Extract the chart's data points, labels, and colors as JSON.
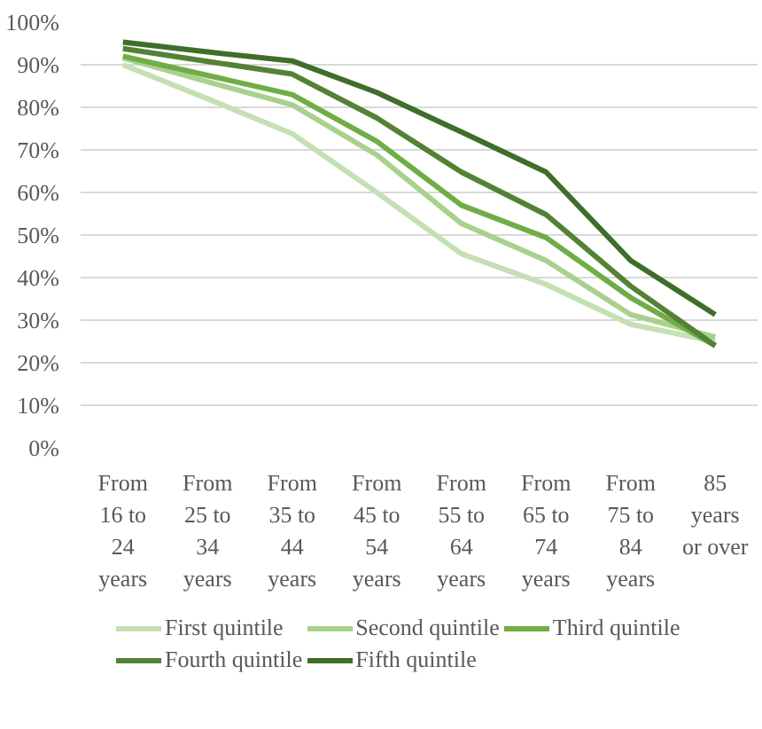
{
  "chart_data": {
    "type": "line",
    "categories": [
      "From\n16 to\n24\nyears",
      "From\n25 to\n34\nyears",
      "From\n35 to\n44\nyears",
      "From\n45 to\n54\nyears",
      "From\n55 to\n64\nyears",
      "From\n65 to\n74\nyears",
      "From\n75 to\n84\nyears",
      "85\nyears\nor over"
    ],
    "series": [
      {
        "name": "First quintile",
        "color": "#c5e0b4",
        "values": [
          90,
          82,
          73.8,
          60,
          45.6,
          38.4,
          29,
          25
        ]
      },
      {
        "name": "Second quintile",
        "color": "#a9d18e",
        "values": [
          91.6,
          86,
          80.6,
          68.8,
          52.7,
          44,
          31.3,
          26
        ]
      },
      {
        "name": "Third quintile",
        "color": "#70ad47",
        "values": [
          92,
          87.5,
          83,
          72,
          57,
          49.4,
          35.3,
          24
        ]
      },
      {
        "name": "Fourth quintile",
        "color": "#548235",
        "values": [
          93.8,
          90.8,
          87.8,
          77.5,
          64.8,
          54.8,
          38,
          24
        ]
      },
      {
        "name": "Fifth quintile",
        "color": "#3f6e2a",
        "values": [
          95.3,
          93,
          90.9,
          83.5,
          74.2,
          64.8,
          44,
          31.3
        ]
      }
    ],
    "ylim": [
      0,
      100
    ],
    "yticks": [
      {
        "value": 0,
        "label": "0%"
      },
      {
        "value": 10,
        "label": "10%"
      },
      {
        "value": 20,
        "label": "20%"
      },
      {
        "value": 30,
        "label": "30%"
      },
      {
        "value": 40,
        "label": "40%"
      },
      {
        "value": 50,
        "label": "50%"
      },
      {
        "value": 60,
        "label": "60%"
      },
      {
        "value": 70,
        "label": "70%"
      },
      {
        "value": 80,
        "label": "80%"
      },
      {
        "value": 90,
        "label": "90%"
      },
      {
        "value": 100,
        "label": "100%"
      }
    ],
    "grid": "y",
    "legend": "bottom",
    "marker": "none",
    "line_style": "solid"
  }
}
